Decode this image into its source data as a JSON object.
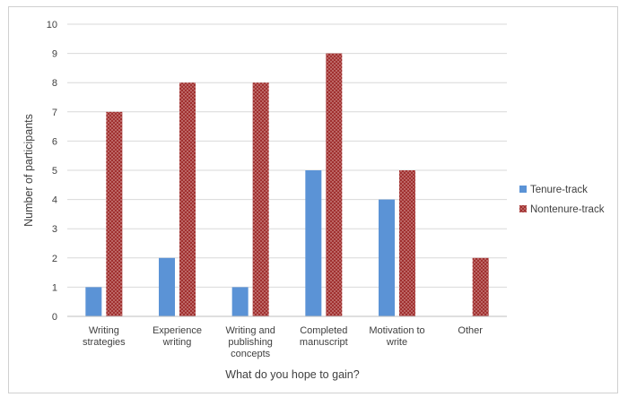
{
  "chart_data": {
    "type": "bar",
    "title": "",
    "xlabel": "What do you hope to gain?",
    "ylabel": "Number of participants",
    "ylim": [
      0,
      10
    ],
    "yticks": [
      0,
      1,
      2,
      3,
      4,
      5,
      6,
      7,
      8,
      9,
      10
    ],
    "grid": true,
    "legend_position": "right",
    "categories": [
      [
        "Writing",
        "strategies"
      ],
      [
        "Experience",
        "writing"
      ],
      [
        "Writing and",
        "publishing",
        "concepts"
      ],
      [
        "Completed",
        "manuscript"
      ],
      [
        "Motivation to",
        "write"
      ],
      [
        "Other"
      ]
    ],
    "series": [
      {
        "name": "Tenure-track",
        "color": "#5b93d6",
        "values": [
          1,
          2,
          1,
          5,
          4,
          0
        ]
      },
      {
        "name": "Nontenure-track",
        "color": "#a0302f",
        "pattern": "dots",
        "values": [
          7,
          8,
          8,
          9,
          5,
          2
        ]
      }
    ]
  }
}
